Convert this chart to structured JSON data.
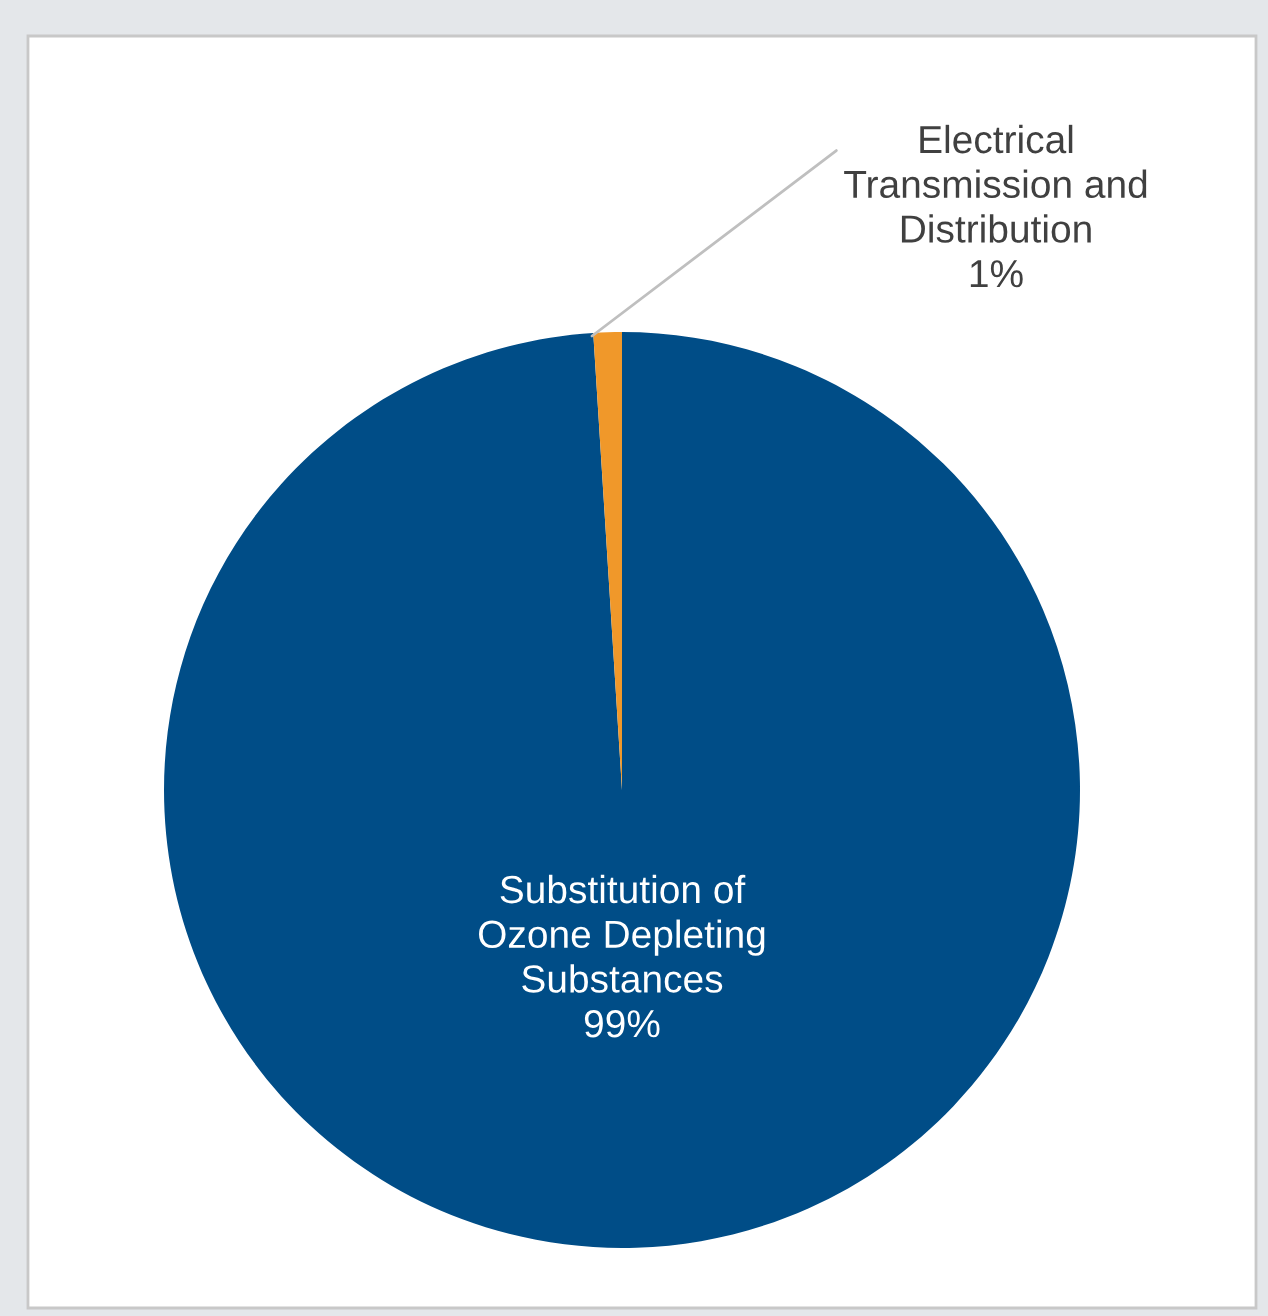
{
  "chart_data": {
    "type": "pie",
    "categories": [
      "Substitution of Ozone Depleting Substances",
      "Electrical Transmission and Distribution"
    ],
    "values": [
      99,
      1
    ],
    "value_labels": [
      "99%",
      "1%"
    ],
    "colors": [
      "#004d87",
      "#f0982a"
    ],
    "legend": false
  }
}
